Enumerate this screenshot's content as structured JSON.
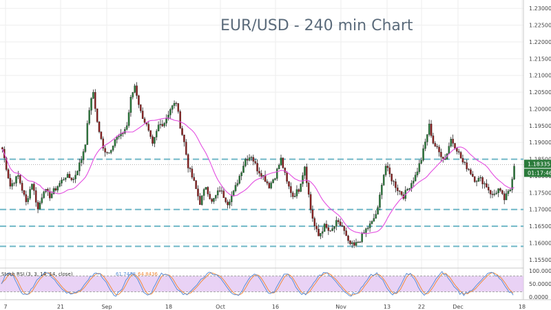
{
  "chart_data": {
    "type": "candlestick",
    "title": "EUR/USD - 240 min Chart",
    "xlabel": "",
    "ylabel": "",
    "ylim": [
      1.1525,
      1.2325
    ],
    "y_ticks": [
      "1.23000",
      "1.22500",
      "1.22000",
      "1.21500",
      "1.21000",
      "1.20500",
      "1.20000",
      "1.19500",
      "1.19000",
      "1.18500",
      "1.18000",
      "1.17500",
      "1.17000",
      "1.16500",
      "1.16000",
      "1.15500"
    ],
    "x_ticks": [
      "7",
      "21",
      "Sep",
      "18",
      "Oct",
      "16",
      "Nov",
      "13",
      "22",
      "Dec",
      "18"
    ],
    "grid": true,
    "levels": [
      1.185,
      1.17,
      1.165,
      1.159
    ],
    "series_anchors": [
      [
        0,
        1.188
      ],
      [
        4,
        1.177
      ],
      [
        8,
        1.18
      ],
      [
        12,
        1.172
      ],
      [
        15,
        1.178
      ],
      [
        18,
        1.17
      ],
      [
        21,
        1.176
      ],
      [
        24,
        1.174
      ],
      [
        28,
        1.177
      ],
      [
        32,
        1.18
      ],
      [
        36,
        1.179
      ],
      [
        40,
        1.185
      ],
      [
        42,
        1.19
      ],
      [
        44,
        1.2
      ],
      [
        46,
        1.205
      ],
      [
        48,
        1.196
      ],
      [
        51,
        1.188
      ],
      [
        54,
        1.187
      ],
      [
        57,
        1.191
      ],
      [
        60,
        1.192
      ],
      [
        63,
        1.195
      ],
      [
        65,
        1.203
      ],
      [
        67,
        1.207
      ],
      [
        70,
        1.199
      ],
      [
        73,
        1.195
      ],
      [
        76,
        1.189
      ],
      [
        79,
        1.195
      ],
      [
        82,
        1.196
      ],
      [
        85,
        1.2
      ],
      [
        88,
        1.202
      ],
      [
        90,
        1.195
      ],
      [
        92,
        1.19
      ],
      [
        94,
        1.183
      ],
      [
        97,
        1.178
      ],
      [
        100,
        1.172
      ],
      [
        103,
        1.177
      ],
      [
        106,
        1.172
      ],
      [
        110,
        1.176
      ],
      [
        114,
        1.172
      ],
      [
        117,
        1.175
      ],
      [
        120,
        1.18
      ],
      [
        123,
        1.185
      ],
      [
        126,
        1.186
      ],
      [
        129,
        1.182
      ],
      [
        132,
        1.18
      ],
      [
        135,
        1.177
      ],
      [
        138,
        1.18
      ],
      [
        141,
        1.185
      ],
      [
        144,
        1.178
      ],
      [
        147,
        1.174
      ],
      [
        150,
        1.176
      ],
      [
        153,
        1.183
      ],
      [
        156,
        1.17
      ],
      [
        158,
        1.165
      ],
      [
        160,
        1.162
      ],
      [
        163,
        1.165
      ],
      [
        166,
        1.163
      ],
      [
        169,
        1.166
      ],
      [
        172,
        1.165
      ],
      [
        175,
        1.16
      ],
      [
        178,
        1.159
      ],
      [
        181,
        1.161
      ],
      [
        184,
        1.164
      ],
      [
        187,
        1.166
      ],
      [
        190,
        1.17
      ],
      [
        192,
        1.178
      ],
      [
        194,
        1.183
      ],
      [
        197,
        1.179
      ],
      [
        200,
        1.176
      ],
      [
        203,
        1.174
      ],
      [
        206,
        1.177
      ],
      [
        209,
        1.18
      ],
      [
        212,
        1.185
      ],
      [
        214,
        1.19
      ],
      [
        216,
        1.195
      ],
      [
        218,
        1.19
      ],
      [
        221,
        1.187
      ],
      [
        224,
        1.185
      ],
      [
        227,
        1.191
      ],
      [
        230,
        1.188
      ],
      [
        233,
        1.184
      ],
      [
        236,
        1.182
      ],
      [
        239,
        1.179
      ],
      [
        242,
        1.179
      ],
      [
        245,
        1.177
      ],
      [
        248,
        1.174
      ],
      [
        251,
        1.176
      ],
      [
        254,
        1.173
      ],
      [
        257,
        1.176
      ],
      [
        259,
        1.1834
      ]
    ],
    "last_price": "1.18335",
    "countdown": "01:17:46",
    "oscillator": {
      "label": "Stoch RSI (3, 3, 14, 14, close)",
      "value_1": "61.7478",
      "value_2": "64.8436",
      "ylim": [
        0,
        100
      ],
      "y_ticks": [
        "100.0000",
        "50.0000",
        "0.0000"
      ],
      "bands": [
        80,
        20
      ]
    },
    "colors": {
      "up": "#2a7a3a",
      "down": "#8b2020",
      "ma": "#e34ce0",
      "levels": "#6fb7c7",
      "badge": "#2a7a3a",
      "osc_fill": "#e4c7f2",
      "osc_k": "#5b8fd6",
      "osc_d": "#f08a3c"
    }
  }
}
